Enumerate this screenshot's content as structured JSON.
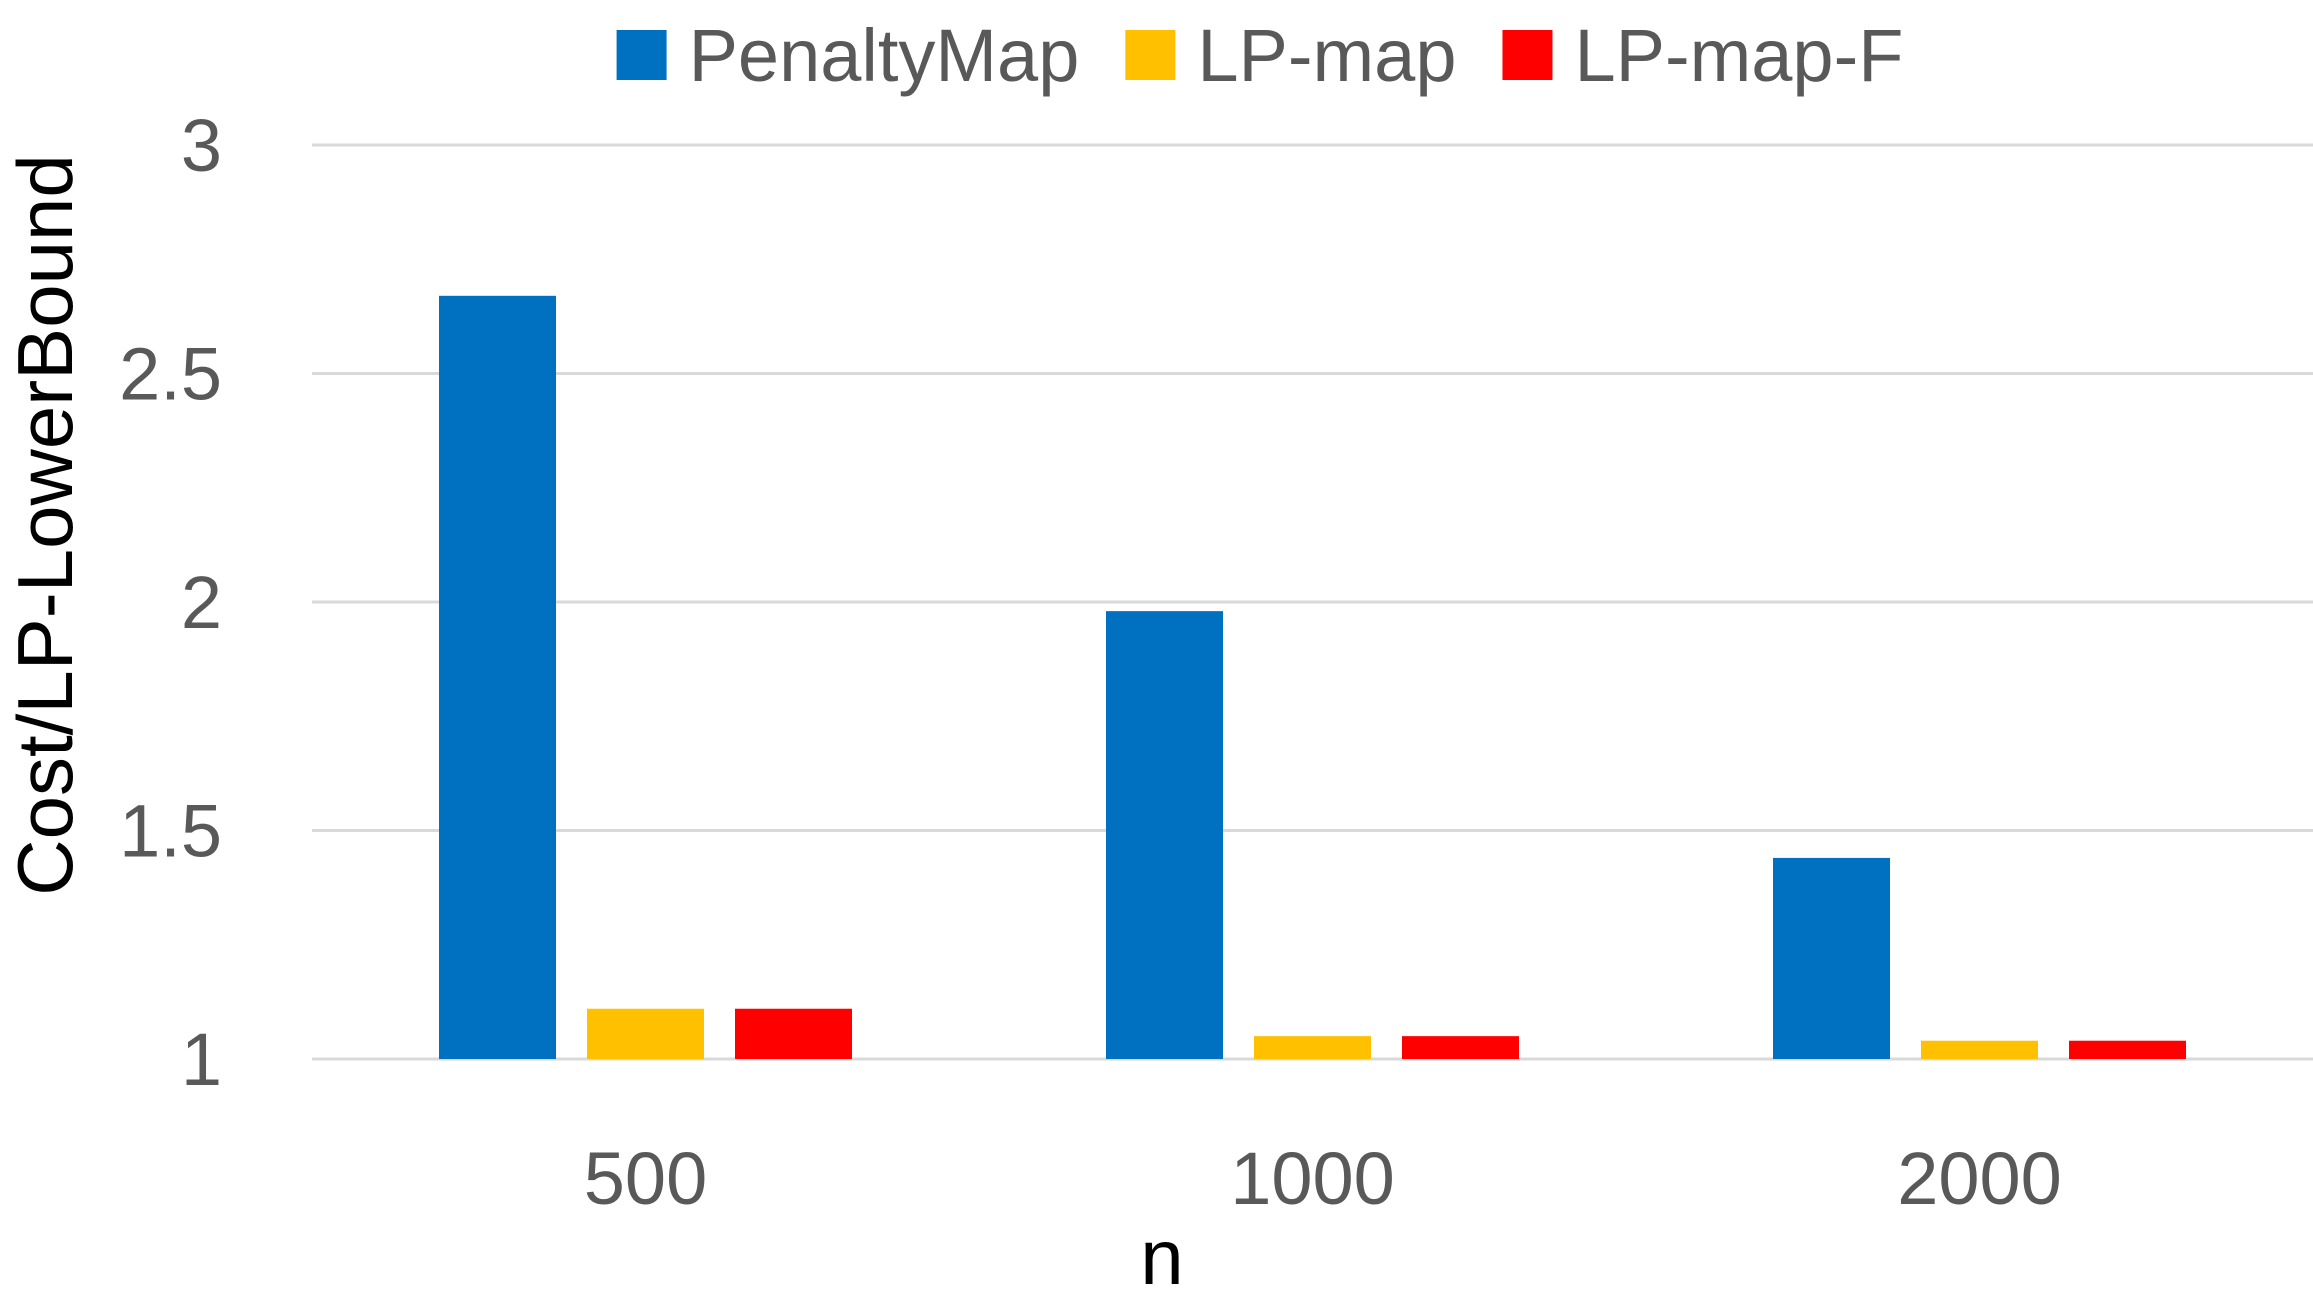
{
  "chart_data": {
    "type": "bar",
    "title": "",
    "xlabel": "n",
    "ylabel": "Cost/LP-LowerBound",
    "categories": [
      "500",
      "1000",
      "2000"
    ],
    "series": [
      {
        "name": "PenaltyMap",
        "color": "#0070C0",
        "values": [
          2.67,
          1.98,
          1.44
        ]
      },
      {
        "name": "LP-map",
        "color": "#FFC000",
        "values": [
          1.11,
          1.05,
          1.04
        ]
      },
      {
        "name": "LP-map-F",
        "color": "#FF0000",
        "values": [
          1.11,
          1.05,
          1.04
        ]
      }
    ],
    "ylim": [
      1,
      3
    ],
    "yticks": [
      "1",
      "1.5",
      "2",
      "2.5",
      "3"
    ],
    "grid": true,
    "legend_position": "top-center"
  }
}
